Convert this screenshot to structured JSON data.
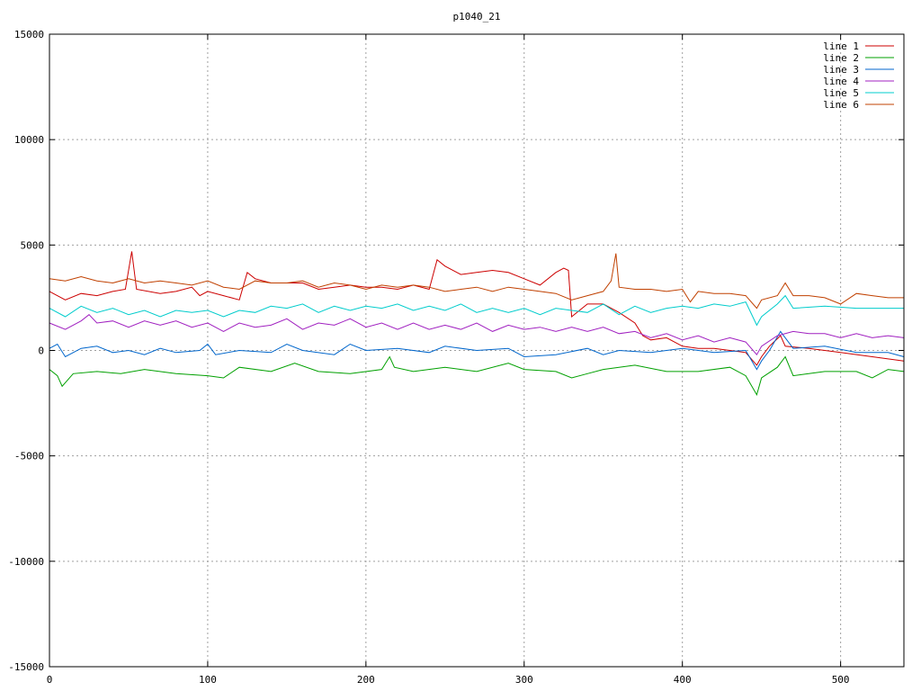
{
  "chart_data": {
    "type": "line",
    "title": "p1040_21",
    "xlabel": "",
    "ylabel": "",
    "xlim": [
      0,
      540
    ],
    "ylim": [
      -15000,
      15000
    ],
    "x_ticks": [
      0,
      100,
      200,
      300,
      400,
      500
    ],
    "y_ticks": [
      -15000,
      -10000,
      -5000,
      0,
      5000,
      10000,
      15000
    ],
    "grid": true,
    "legend": "top-right",
    "series": [
      {
        "name": "line 1",
        "color": "#cc0000",
        "points": [
          [
            0,
            2800
          ],
          [
            10,
            2400
          ],
          [
            20,
            2700
          ],
          [
            30,
            2600
          ],
          [
            40,
            2800
          ],
          [
            48,
            2900
          ],
          [
            52,
            4700
          ],
          [
            55,
            2900
          ],
          [
            70,
            2700
          ],
          [
            80,
            2800
          ],
          [
            90,
            3000
          ],
          [
            95,
            2600
          ],
          [
            100,
            2800
          ],
          [
            110,
            2600
          ],
          [
            120,
            2400
          ],
          [
            125,
            3700
          ],
          [
            130,
            3400
          ],
          [
            140,
            3200
          ],
          [
            160,
            3200
          ],
          [
            170,
            2900
          ],
          [
            180,
            3000
          ],
          [
            190,
            3100
          ],
          [
            200,
            3000
          ],
          [
            210,
            3000
          ],
          [
            220,
            2900
          ],
          [
            230,
            3100
          ],
          [
            240,
            2900
          ],
          [
            245,
            4300
          ],
          [
            250,
            4000
          ],
          [
            260,
            3600
          ],
          [
            270,
            3700
          ],
          [
            280,
            3800
          ],
          [
            290,
            3700
          ],
          [
            300,
            3400
          ],
          [
            310,
            3100
          ],
          [
            320,
            3700
          ],
          [
            325,
            3900
          ],
          [
            328,
            3800
          ],
          [
            330,
            1600
          ],
          [
            340,
            2200
          ],
          [
            350,
            2200
          ],
          [
            360,
            1800
          ],
          [
            370,
            1300
          ],
          [
            375,
            700
          ],
          [
            380,
            500
          ],
          [
            390,
            600
          ],
          [
            400,
            200
          ],
          [
            410,
            100
          ],
          [
            420,
            100
          ],
          [
            430,
            0
          ],
          [
            440,
            -100
          ],
          [
            447,
            -700
          ],
          [
            450,
            -300
          ],
          [
            455,
            200
          ],
          [
            462,
            700
          ],
          [
            465,
            200
          ],
          [
            480,
            100
          ],
          [
            500,
            -100
          ],
          [
            520,
            -300
          ],
          [
            540,
            -500
          ]
        ]
      },
      {
        "name": "line 2",
        "color": "#00a000",
        "points": [
          [
            0,
            -900
          ],
          [
            5,
            -1200
          ],
          [
            8,
            -1700
          ],
          [
            15,
            -1100
          ],
          [
            30,
            -1000
          ],
          [
            45,
            -1100
          ],
          [
            60,
            -900
          ],
          [
            80,
            -1100
          ],
          [
            100,
            -1200
          ],
          [
            110,
            -1300
          ],
          [
            120,
            -800
          ],
          [
            140,
            -1000
          ],
          [
            155,
            -600
          ],
          [
            170,
            -1000
          ],
          [
            190,
            -1100
          ],
          [
            210,
            -900
          ],
          [
            215,
            -300
          ],
          [
            218,
            -800
          ],
          [
            230,
            -1000
          ],
          [
            250,
            -800
          ],
          [
            270,
            -1000
          ],
          [
            290,
            -600
          ],
          [
            300,
            -900
          ],
          [
            320,
            -1000
          ],
          [
            330,
            -1300
          ],
          [
            340,
            -1100
          ],
          [
            350,
            -900
          ],
          [
            370,
            -700
          ],
          [
            390,
            -1000
          ],
          [
            410,
            -1000
          ],
          [
            430,
            -800
          ],
          [
            440,
            -1200
          ],
          [
            447,
            -2100
          ],
          [
            450,
            -1300
          ],
          [
            460,
            -800
          ],
          [
            465,
            -300
          ],
          [
            470,
            -1200
          ],
          [
            490,
            -1000
          ],
          [
            510,
            -1000
          ],
          [
            520,
            -1300
          ],
          [
            530,
            -900
          ],
          [
            540,
            -1000
          ]
        ]
      },
      {
        "name": "line 3",
        "color": "#0066cc",
        "points": [
          [
            0,
            100
          ],
          [
            5,
            300
          ],
          [
            10,
            -300
          ],
          [
            20,
            100
          ],
          [
            30,
            200
          ],
          [
            40,
            -100
          ],
          [
            50,
            0
          ],
          [
            60,
            -200
          ],
          [
            70,
            100
          ],
          [
            80,
            -100
          ],
          [
            95,
            0
          ],
          [
            100,
            300
          ],
          [
            105,
            -200
          ],
          [
            120,
            0
          ],
          [
            140,
            -100
          ],
          [
            150,
            300
          ],
          [
            160,
            0
          ],
          [
            180,
            -200
          ],
          [
            190,
            300
          ],
          [
            200,
            0
          ],
          [
            220,
            100
          ],
          [
            240,
            -100
          ],
          [
            250,
            200
          ],
          [
            270,
            0
          ],
          [
            290,
            100
          ],
          [
            300,
            -300
          ],
          [
            320,
            -200
          ],
          [
            340,
            100
          ],
          [
            350,
            -200
          ],
          [
            360,
            0
          ],
          [
            380,
            -100
          ],
          [
            400,
            100
          ],
          [
            420,
            -100
          ],
          [
            440,
            0
          ],
          [
            447,
            -900
          ],
          [
            450,
            -500
          ],
          [
            455,
            0
          ],
          [
            462,
            900
          ],
          [
            470,
            100
          ],
          [
            490,
            200
          ],
          [
            510,
            -100
          ],
          [
            530,
            -100
          ],
          [
            540,
            -300
          ]
        ]
      },
      {
        "name": "line 4",
        "color": "#a020c0",
        "points": [
          [
            0,
            1300
          ],
          [
            10,
            1000
          ],
          [
            20,
            1400
          ],
          [
            25,
            1700
          ],
          [
            30,
            1300
          ],
          [
            40,
            1400
          ],
          [
            50,
            1100
          ],
          [
            60,
            1400
          ],
          [
            70,
            1200
          ],
          [
            80,
            1400
          ],
          [
            90,
            1100
          ],
          [
            100,
            1300
          ],
          [
            110,
            900
          ],
          [
            120,
            1300
          ],
          [
            130,
            1100
          ],
          [
            140,
            1200
          ],
          [
            150,
            1500
          ],
          [
            160,
            1000
          ],
          [
            170,
            1300
          ],
          [
            180,
            1200
          ],
          [
            190,
            1500
          ],
          [
            200,
            1100
          ],
          [
            210,
            1300
          ],
          [
            220,
            1000
          ],
          [
            230,
            1300
          ],
          [
            240,
            1000
          ],
          [
            250,
            1200
          ],
          [
            260,
            1000
          ],
          [
            270,
            1300
          ],
          [
            280,
            900
          ],
          [
            290,
            1200
          ],
          [
            300,
            1000
          ],
          [
            310,
            1100
          ],
          [
            320,
            900
          ],
          [
            330,
            1100
          ],
          [
            340,
            900
          ],
          [
            350,
            1100
          ],
          [
            360,
            800
          ],
          [
            370,
            900
          ],
          [
            380,
            600
          ],
          [
            390,
            800
          ],
          [
            400,
            500
          ],
          [
            410,
            700
          ],
          [
            420,
            400
          ],
          [
            430,
            600
          ],
          [
            440,
            400
          ],
          [
            447,
            -200
          ],
          [
            450,
            200
          ],
          [
            460,
            700
          ],
          [
            470,
            900
          ],
          [
            480,
            800
          ],
          [
            490,
            800
          ],
          [
            500,
            600
          ],
          [
            510,
            800
          ],
          [
            520,
            600
          ],
          [
            530,
            700
          ],
          [
            540,
            600
          ]
        ]
      },
      {
        "name": "line 5",
        "color": "#00cccc",
        "points": [
          [
            0,
            2000
          ],
          [
            10,
            1600
          ],
          [
            20,
            2100
          ],
          [
            30,
            1800
          ],
          [
            40,
            2000
          ],
          [
            50,
            1700
          ],
          [
            60,
            1900
          ],
          [
            70,
            1600
          ],
          [
            80,
            1900
          ],
          [
            90,
            1800
          ],
          [
            100,
            1900
          ],
          [
            110,
            1600
          ],
          [
            120,
            1900
          ],
          [
            130,
            1800
          ],
          [
            140,
            2100
          ],
          [
            150,
            2000
          ],
          [
            160,
            2200
          ],
          [
            170,
            1800
          ],
          [
            180,
            2100
          ],
          [
            190,
            1900
          ],
          [
            200,
            2100
          ],
          [
            210,
            2000
          ],
          [
            220,
            2200
          ],
          [
            230,
            1900
          ],
          [
            240,
            2100
          ],
          [
            250,
            1900
          ],
          [
            260,
            2200
          ],
          [
            270,
            1800
          ],
          [
            280,
            2000
          ],
          [
            290,
            1800
          ],
          [
            300,
            2000
          ],
          [
            310,
            1700
          ],
          [
            320,
            2000
          ],
          [
            330,
            1900
          ],
          [
            340,
            1800
          ],
          [
            350,
            2200
          ],
          [
            360,
            1700
          ],
          [
            370,
            2100
          ],
          [
            380,
            1800
          ],
          [
            390,
            2000
          ],
          [
            400,
            2100
          ],
          [
            410,
            2000
          ],
          [
            420,
            2200
          ],
          [
            430,
            2100
          ],
          [
            440,
            2300
          ],
          [
            447,
            1200
          ],
          [
            450,
            1600
          ],
          [
            460,
            2200
          ],
          [
            465,
            2600
          ],
          [
            470,
            2000
          ],
          [
            490,
            2100
          ],
          [
            510,
            2000
          ],
          [
            530,
            2000
          ],
          [
            540,
            2000
          ]
        ]
      },
      {
        "name": "line 6",
        "color": "#c04000",
        "points": [
          [
            0,
            3400
          ],
          [
            10,
            3300
          ],
          [
            20,
            3500
          ],
          [
            30,
            3300
          ],
          [
            40,
            3200
          ],
          [
            50,
            3400
          ],
          [
            60,
            3200
          ],
          [
            70,
            3300
          ],
          [
            80,
            3200
          ],
          [
            90,
            3100
          ],
          [
            100,
            3300
          ],
          [
            110,
            3000
          ],
          [
            120,
            2900
          ],
          [
            130,
            3300
          ],
          [
            140,
            3200
          ],
          [
            150,
            3200
          ],
          [
            160,
            3300
          ],
          [
            170,
            3000
          ],
          [
            180,
            3200
          ],
          [
            190,
            3100
          ],
          [
            200,
            2900
          ],
          [
            210,
            3100
          ],
          [
            220,
            3000
          ],
          [
            230,
            3100
          ],
          [
            240,
            3000
          ],
          [
            250,
            2800
          ],
          [
            260,
            2900
          ],
          [
            270,
            3000
          ],
          [
            280,
            2800
          ],
          [
            290,
            3000
          ],
          [
            300,
            2900
          ],
          [
            310,
            2800
          ],
          [
            320,
            2700
          ],
          [
            330,
            2400
          ],
          [
            340,
            2600
          ],
          [
            350,
            2800
          ],
          [
            355,
            3300
          ],
          [
            358,
            4600
          ],
          [
            360,
            3000
          ],
          [
            370,
            2900
          ],
          [
            380,
            2900
          ],
          [
            390,
            2800
          ],
          [
            400,
            2900
          ],
          [
            405,
            2300
          ],
          [
            410,
            2800
          ],
          [
            420,
            2700
          ],
          [
            430,
            2700
          ],
          [
            440,
            2600
          ],
          [
            447,
            2000
          ],
          [
            450,
            2400
          ],
          [
            460,
            2600
          ],
          [
            465,
            3200
          ],
          [
            470,
            2600
          ],
          [
            480,
            2600
          ],
          [
            490,
            2500
          ],
          [
            500,
            2200
          ],
          [
            510,
            2700
          ],
          [
            520,
            2600
          ],
          [
            530,
            2500
          ],
          [
            540,
            2500
          ]
        ]
      }
    ]
  }
}
